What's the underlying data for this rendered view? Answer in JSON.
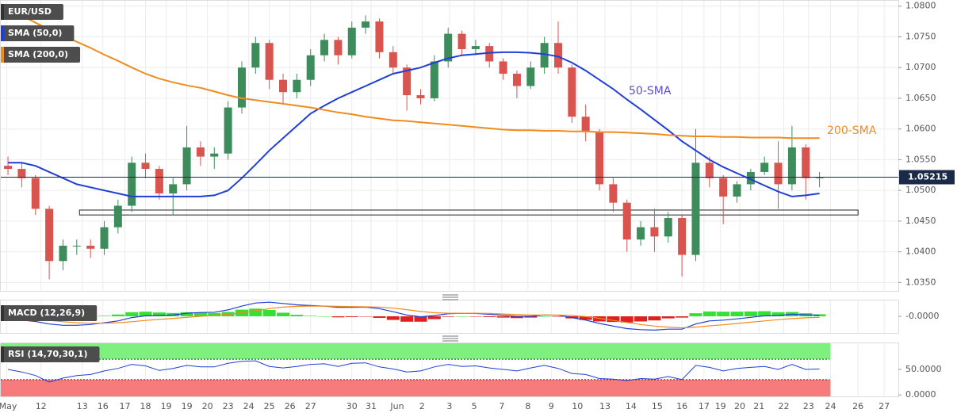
{
  "chart_data": [
    {
      "type": "candlestick",
      "symbol": "EUR/USD",
      "open": [
        1.054,
        1.0535,
        1.052,
        1.047,
        1.0385,
        1.041,
        1.041,
        1.0405,
        1.044,
        1.0475,
        1.0545,
        1.0535,
        1.0495,
        1.051,
        1.057,
        1.0555,
        1.056,
        1.0635,
        1.07,
        1.074,
        1.068,
        1.066,
        1.068,
        1.072,
        1.0745,
        1.072,
        1.0765,
        1.0775,
        1.0725,
        1.07,
        1.0655,
        1.065,
        1.071,
        1.0755,
        1.073,
        1.0735,
        1.071,
        1.069,
        1.067,
        1.07,
        1.074,
        1.07,
        1.062,
        1.0595,
        1.051,
        1.048,
        1.042,
        1.044,
        1.0425,
        1.0455,
        1.0395,
        1.0545,
        1.052,
        1.049,
        1.051,
        1.053,
        1.0545,
        1.051,
        1.057,
        1.052
      ],
      "high": [
        1.0555,
        1.0545,
        1.0525,
        1.0475,
        1.042,
        1.042,
        1.042,
        1.045,
        1.0485,
        1.0555,
        1.056,
        1.054,
        1.052,
        1.0605,
        1.058,
        1.057,
        1.0645,
        1.071,
        1.075,
        1.0745,
        1.069,
        1.069,
        1.073,
        1.0755,
        1.075,
        1.0775,
        1.0785,
        1.078,
        1.0735,
        1.0705,
        1.0665,
        1.072,
        1.0765,
        1.076,
        1.0745,
        1.074,
        1.0715,
        1.0695,
        1.071,
        1.075,
        1.0775,
        1.0705,
        1.064,
        1.06,
        1.052,
        1.0485,
        1.045,
        1.047,
        1.0465,
        1.046,
        1.06,
        1.0555,
        1.0525,
        1.0515,
        1.0535,
        1.0555,
        1.058,
        1.0605,
        1.0575,
        1.053
      ],
      "low": [
        1.0525,
        1.0505,
        1.046,
        1.0355,
        1.037,
        1.0395,
        1.039,
        1.0395,
        1.043,
        1.0465,
        1.052,
        1.0485,
        1.046,
        1.05,
        1.054,
        1.0535,
        1.055,
        1.0625,
        1.069,
        1.0665,
        1.064,
        1.065,
        1.067,
        1.071,
        1.0705,
        1.0715,
        1.0755,
        1.0715,
        1.069,
        1.063,
        1.064,
        1.0645,
        1.07,
        1.072,
        1.072,
        1.07,
        1.068,
        1.065,
        1.0665,
        1.069,
        1.069,
        1.061,
        1.058,
        1.05,
        1.0465,
        1.04,
        1.041,
        1.04,
        1.0415,
        1.036,
        1.0385,
        1.0505,
        1.0445,
        1.048,
        1.05,
        1.0525,
        1.047,
        1.05,
        1.0485,
        1.0505
      ],
      "close": [
        1.0535,
        1.052,
        1.047,
        1.0385,
        1.041,
        1.041,
        1.0405,
        1.044,
        1.0475,
        1.0545,
        1.0535,
        1.0495,
        1.051,
        1.057,
        1.0555,
        1.056,
        1.0635,
        1.07,
        1.074,
        1.068,
        1.066,
        1.068,
        1.072,
        1.0745,
        1.072,
        1.0765,
        1.0775,
        1.0725,
        1.07,
        1.0655,
        1.065,
        1.071,
        1.0755,
        1.073,
        1.0735,
        1.071,
        1.069,
        1.067,
        1.07,
        1.074,
        1.07,
        1.062,
        1.0595,
        1.051,
        1.048,
        1.042,
        1.044,
        1.0425,
        1.0455,
        1.0395,
        1.0545,
        1.052,
        1.049,
        1.051,
        1.053,
        1.0545,
        1.051,
        1.057,
        1.052,
        1.0522
      ],
      "up_color": "#3d8c5c",
      "down_color": "#d9534f",
      "series": [
        {
          "name": "SMA (50,0)",
          "color": "#1f3fd6",
          "values": [
            1.0545,
            1.0545,
            1.054,
            1.053,
            1.052,
            1.051,
            1.0505,
            1.05,
            1.0495,
            1.049,
            1.049,
            1.049,
            1.049,
            1.049,
            1.049,
            1.0492,
            1.05,
            1.052,
            1.0542,
            1.0565,
            1.0585,
            1.0605,
            1.0625,
            1.0638,
            1.065,
            1.066,
            1.067,
            1.068,
            1.069,
            1.0695,
            1.07,
            1.0708,
            1.0715,
            1.072,
            1.0722,
            1.0724,
            1.0725,
            1.0725,
            1.0724,
            1.0722,
            1.0718,
            1.0708,
            1.0695,
            1.068,
            1.0665,
            1.0648,
            1.0632,
            1.0615,
            1.0598,
            1.058,
            1.0565,
            1.055,
            1.0538,
            1.0528,
            1.0518,
            1.0508,
            1.0498,
            1.049,
            1.0492,
            1.0495
          ]
        },
        {
          "name": "SMA (200,0)",
          "color": "#f08c1e",
          "values": [
            1.0795,
            1.0785,
            1.0773,
            1.0762,
            1.0752,
            1.0742,
            1.0732,
            1.0721,
            1.0711,
            1.07,
            1.069,
            1.0682,
            1.0676,
            1.0671,
            1.0667,
            1.0661,
            1.0655,
            1.065,
            1.0647,
            1.0644,
            1.0641,
            1.0638,
            1.0635,
            1.0631,
            1.0627,
            1.0624,
            1.062,
            1.0617,
            1.0614,
            1.0613,
            1.0611,
            1.0609,
            1.0607,
            1.0605,
            1.0603,
            1.0601,
            1.0599,
            1.0598,
            1.0598,
            1.0597,
            1.0597,
            1.0596,
            1.0596,
            1.0595,
            1.0595,
            1.0594,
            1.0593,
            1.0592,
            1.059,
            1.0589,
            1.0588,
            1.0588,
            1.0587,
            1.0587,
            1.0586,
            1.0586,
            1.0586,
            1.0585,
            1.0585,
            1.0585
          ]
        }
      ],
      "annotations": [
        {
          "text": "50-SMA",
          "color": "#5a4fcf"
        },
        {
          "text": "200-SMA",
          "color": "#f08c1e"
        }
      ],
      "last_price": 1.05215,
      "last_price_color": "#1c2a4a",
      "support_zone": [
        1.046,
        1.0468
      ],
      "ylim": [
        1.0335,
        1.081
      ],
      "yticks": [
        {
          "value": 1.035,
          "label": "1.0350"
        },
        {
          "value": 1.04,
          "label": "1.0400"
        },
        {
          "value": 1.045,
          "label": "1.0450"
        },
        {
          "value": 1.05,
          "label": "1.0500"
        },
        {
          "value": 1.055,
          "label": "1.0550"
        },
        {
          "value": 1.06,
          "label": "1.0600"
        },
        {
          "value": 1.065,
          "label": "1.0650"
        },
        {
          "value": 1.07,
          "label": "1.0700"
        },
        {
          "value": 1.075,
          "label": "1.0750"
        },
        {
          "value": 1.08,
          "label": "1.0800"
        }
      ],
      "xlim": [
        -0.58,
        64.73
      ],
      "xticks": [
        {
          "value": -0.1,
          "label": "May"
        },
        {
          "value": 2.4,
          "label": "12"
        },
        {
          "value": 5.4,
          "label": "13"
        },
        {
          "value": 6.9,
          "label": "16"
        },
        {
          "value": 8.5,
          "label": "17"
        },
        {
          "value": 10,
          "label": "18"
        },
        {
          "value": 11.5,
          "label": "19"
        },
        {
          "value": 13,
          "label": "19"
        },
        {
          "value": 14.5,
          "label": "20"
        },
        {
          "value": 16,
          "label": "23"
        },
        {
          "value": 17.5,
          "label": "24"
        },
        {
          "value": 19,
          "label": "25"
        },
        {
          "value": 20.5,
          "label": "26"
        },
        {
          "value": 22,
          "label": "27"
        },
        {
          "value": 25,
          "label": "30"
        },
        {
          "value": 26.4,
          "label": "31"
        },
        {
          "value": 28.3,
          "label": "Jun"
        },
        {
          "value": 30.1,
          "label": "2"
        },
        {
          "value": 32.1,
          "label": "3"
        },
        {
          "value": 33.9,
          "label": "5"
        },
        {
          "value": 35.9,
          "label": "7"
        },
        {
          "value": 37.8,
          "label": "8"
        },
        {
          "value": 39.5,
          "label": "9"
        },
        {
          "value": 41.4,
          "label": "10"
        },
        {
          "value": 43.4,
          "label": "13"
        },
        {
          "value": 45.3,
          "label": "14"
        },
        {
          "value": 47.2,
          "label": "15"
        },
        {
          "value": 49,
          "label": "16"
        },
        {
          "value": 50.6,
          "label": "17"
        },
        {
          "value": 51.8,
          "label": "19"
        },
        {
          "value": 53.2,
          "label": "20"
        },
        {
          "value": 54.6,
          "label": "21"
        },
        {
          "value": 56.4,
          "label": "22"
        },
        {
          "value": 58.2,
          "label": "23"
        },
        {
          "value": 59.8,
          "label": "24"
        },
        {
          "value": 61.8,
          "label": "26"
        },
        {
          "value": 63.7,
          "label": "27"
        }
      ],
      "grid": true
    },
    {
      "type": "macd",
      "title": "MACD (12,26,9)",
      "series": [
        {
          "color": "#1f3fd6",
          "values": [
            -0.001,
            -0.0015,
            -0.002,
            -0.003,
            -0.0035,
            -0.0035,
            -0.0032,
            -0.0025,
            -0.0018,
            -0.0005,
            0.0002,
            0.0003,
            0.0005,
            0.0012,
            0.0015,
            0.0016,
            0.0025,
            0.004,
            0.0052,
            0.0055,
            0.005,
            0.0045,
            0.0042,
            0.004,
            0.0035,
            0.0035,
            0.0036,
            0.003,
            0.0018,
            0.0005,
            -0.0002,
            0.0003,
            0.001,
            0.0012,
            0.0011,
            0.0008,
            0.0004,
            0,
            0,
            0.0005,
            0.0004,
            -0.0005,
            -0.0015,
            -0.0028,
            -0.0038,
            -0.0048,
            -0.0052,
            -0.0054,
            -0.005,
            -0.005,
            -0.003,
            -0.0018,
            -0.0015,
            -0.001,
            -0.0004,
            0.0002,
            0.0003,
            0.0008,
            0.0006,
            0.0004
          ]
        },
        {
          "color": "#f08c1e",
          "values": [
            -0.0005,
            -0.0008,
            -0.0011,
            -0.0016,
            -0.0021,
            -0.0025,
            -0.0027,
            -0.0027,
            -0.0025,
            -0.0021,
            -0.0016,
            -0.0012,
            -0.0008,
            -0.0004,
            0,
            0.0003,
            0.0008,
            0.0014,
            0.0022,
            0.003,
            0.0036,
            0.0039,
            0.004,
            0.004,
            0.0039,
            0.0038,
            0.0037,
            0.0036,
            0.0032,
            0.0026,
            0.0019,
            0.0014,
            0.0012,
            0.0012,
            0.0012,
            0.0011,
            0.0009,
            0.0007,
            0.0005,
            0.0005,
            0.0005,
            0.0003,
            -0.0001,
            -0.0008,
            -0.0016,
            -0.0024,
            -0.0032,
            -0.0038,
            -0.0042,
            -0.0045,
            -0.0042,
            -0.0037,
            -0.0033,
            -0.0028,
            -0.0023,
            -0.0018,
            -0.0013,
            -0.0009,
            -0.0006,
            -0.0004
          ]
        }
      ],
      "histogram": {
        "up_color": "#33e033",
        "down_color": "#e02020",
        "values": [
          -0.0005,
          -0.0007,
          -0.0009,
          -0.0014,
          -0.0014,
          -0.001,
          -0.0005,
          0.0002,
          0.0007,
          0.0016,
          0.0018,
          0.0015,
          0.0013,
          0.0016,
          0.0015,
          0.0013,
          0.0017,
          0.0026,
          0.003,
          0.0025,
          0.0014,
          0.0006,
          0.0002,
          0,
          -0.0004,
          -0.0003,
          -0.0001,
          -0.0006,
          -0.0014,
          -0.0021,
          -0.0021,
          -0.0011,
          -0.0002,
          0,
          -0.0001,
          -0.0003,
          -0.0005,
          -0.0007,
          -0.0005,
          0,
          -0.0001,
          -0.0008,
          -0.0014,
          -0.002,
          -0.0022,
          -0.0024,
          -0.002,
          -0.0016,
          -0.0008,
          -0.0005,
          0.0012,
          0.0019,
          0.0018,
          0.0018,
          0.0019,
          0.002,
          0.0016,
          0.0017,
          0.0012,
          0.0008
        ]
      },
      "ylim": [
        -0.0065,
        0.0065
      ],
      "yticks": [
        {
          "value": 0,
          "label": "-0.0000"
        }
      ]
    },
    {
      "type": "rsi",
      "title": "RSI (14,70,30,1)",
      "color": "#1f3fd6",
      "values": [
        50,
        45,
        38,
        25,
        33,
        38,
        40,
        47,
        52,
        60,
        57,
        48,
        52,
        58,
        55,
        55,
        62,
        66,
        67,
        56,
        53,
        56,
        60,
        61,
        56,
        62,
        63,
        55,
        51,
        45,
        47,
        55,
        60,
        56,
        57,
        53,
        50,
        47,
        53,
        58,
        52,
        42,
        40,
        32,
        31,
        28,
        32,
        31,
        36,
        30,
        58,
        54,
        47,
        52,
        54,
        56,
        50,
        60,
        50,
        51
      ],
      "levels": [
        70,
        30
      ],
      "upper_zone_color": "#7df07d",
      "lower_zone_color": "#f77b7b",
      "ylim": [
        -3,
        103
      ],
      "yticks": [
        {
          "value": 0,
          "label": "0.0000"
        },
        {
          "value": 50,
          "label": "50.0000"
        }
      ]
    }
  ]
}
